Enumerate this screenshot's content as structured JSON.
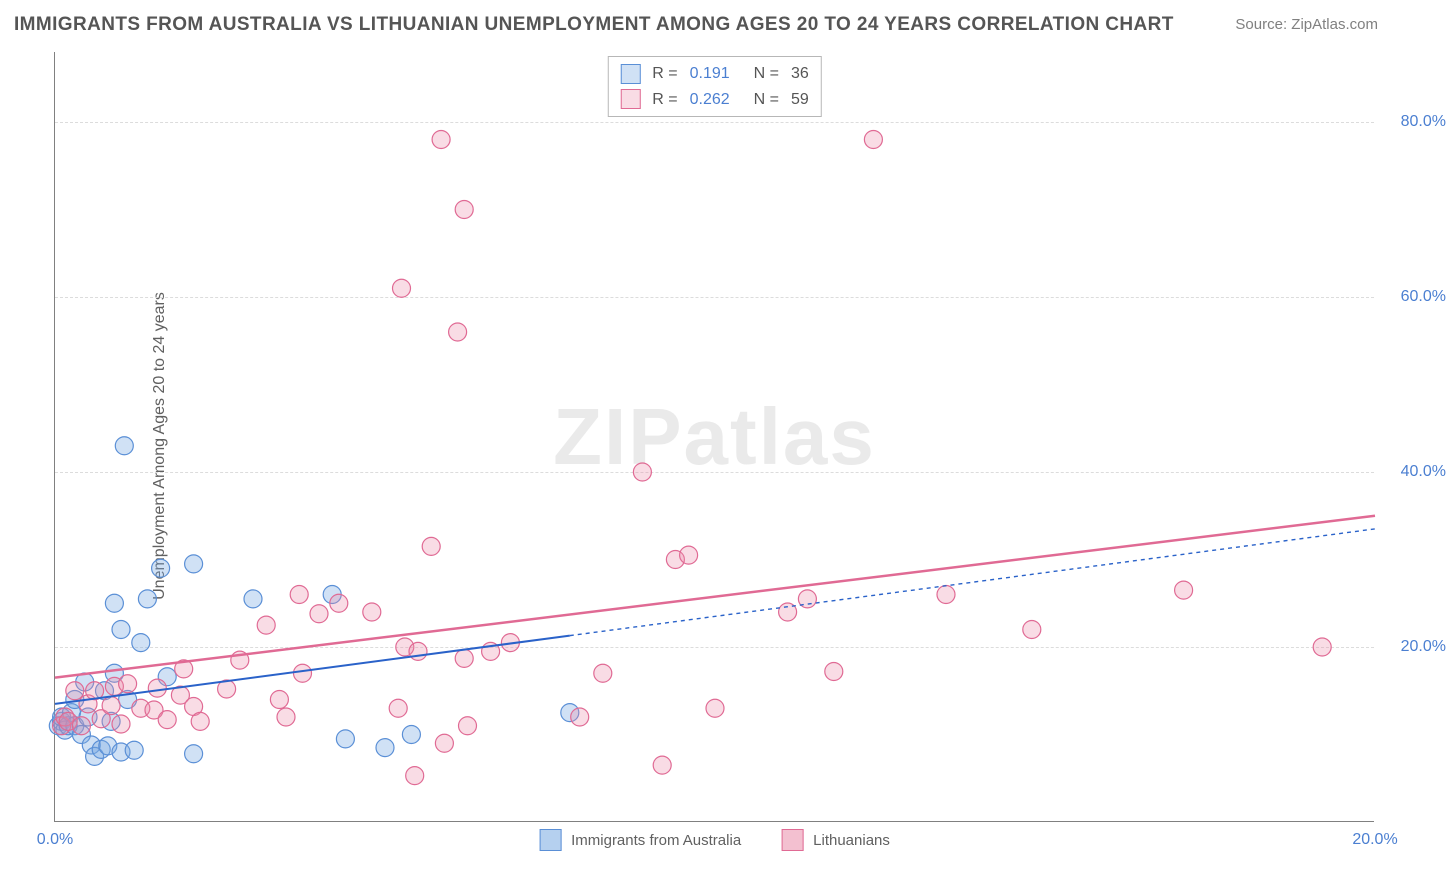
{
  "title": "IMMIGRANTS FROM AUSTRALIA VS LITHUANIAN UNEMPLOYMENT AMONG AGES 20 TO 24 YEARS CORRELATION CHART",
  "source_label": "Source: ",
  "source_value": "ZipAtlas.com",
  "y_axis_label": "Unemployment Among Ages 20 to 24 years",
  "watermark": "ZIPatlas",
  "chart": {
    "type": "scatter",
    "background_color": "#ffffff",
    "grid_color": "#dcdcdc",
    "axis_color": "#808080",
    "tick_color": "#4b7fd1",
    "xlim": [
      0,
      20
    ],
    "ylim": [
      0,
      88
    ],
    "x_ticks": [
      {
        "v": 0,
        "label": "0.0%"
      },
      {
        "v": 20,
        "label": "20.0%"
      }
    ],
    "y_ticks": [
      {
        "v": 20,
        "label": "20.0%"
      },
      {
        "v": 40,
        "label": "40.0%"
      },
      {
        "v": 60,
        "label": "60.0%"
      },
      {
        "v": 80,
        "label": "80.0%"
      }
    ],
    "series": [
      {
        "key": "australia",
        "label": "Immigrants from Australia",
        "marker_color_fill": "rgba(121,169,226,0.35)",
        "marker_color_stroke": "#5a8fd6",
        "marker_radius": 9,
        "line_color": "#2a62c9",
        "line_width": 2,
        "line_dash_ext": "4 4",
        "fit_y_at_x0": 13.5,
        "fit_y_at_xmax": 33.5,
        "solid_x_end": 7.8,
        "R_label": "R  =",
        "R_value": "0.191",
        "N_label": "N  =",
        "N_value": "36",
        "points": [
          [
            0.05,
            11
          ],
          [
            0.1,
            11.5
          ],
          [
            0.1,
            12
          ],
          [
            0.15,
            10.5
          ],
          [
            0.2,
            11
          ],
          [
            0.25,
            12.5
          ],
          [
            0.3,
            11
          ],
          [
            0.3,
            14
          ],
          [
            0.4,
            10
          ],
          [
            0.45,
            16
          ],
          [
            0.5,
            12
          ],
          [
            0.55,
            8.8
          ],
          [
            0.6,
            7.5
          ],
          [
            0.7,
            8.3
          ],
          [
            0.75,
            15
          ],
          [
            0.8,
            8.7
          ],
          [
            0.85,
            11.5
          ],
          [
            0.9,
            25
          ],
          [
            0.9,
            17
          ],
          [
            1.0,
            8.0
          ],
          [
            1.0,
            22
          ],
          [
            1.05,
            43
          ],
          [
            1.1,
            14
          ],
          [
            1.2,
            8.2
          ],
          [
            1.3,
            20.5
          ],
          [
            1.4,
            25.5
          ],
          [
            1.6,
            29
          ],
          [
            1.7,
            16.6
          ],
          [
            2.1,
            29.5
          ],
          [
            2.1,
            7.8
          ],
          [
            3.0,
            25.5
          ],
          [
            4.2,
            26
          ],
          [
            4.4,
            9.5
          ],
          [
            5.0,
            8.5
          ],
          [
            5.4,
            10
          ],
          [
            7.8,
            12.5
          ]
        ]
      },
      {
        "key": "lithuanians",
        "label": "Lithuanians",
        "marker_color_fill": "rgba(234,140,170,0.30)",
        "marker_color_stroke": "#e06a94",
        "marker_radius": 9,
        "line_color": "#e06a94",
        "line_width": 2.5,
        "line_dash_ext": "",
        "fit_y_at_x0": 16.5,
        "fit_y_at_xmax": 35,
        "solid_x_end": 20,
        "R_label": "R  =",
        "R_value": "0.262",
        "N_label": "N  =",
        "N_value": "59",
        "points": [
          [
            0.1,
            11
          ],
          [
            0.15,
            12
          ],
          [
            0.2,
            11.5
          ],
          [
            0.3,
            15
          ],
          [
            0.4,
            11
          ],
          [
            0.5,
            13.5
          ],
          [
            0.6,
            15
          ],
          [
            0.7,
            11.8
          ],
          [
            0.85,
            13.3
          ],
          [
            0.9,
            15.5
          ],
          [
            1.0,
            11.2
          ],
          [
            1.1,
            15.8
          ],
          [
            1.3,
            13
          ],
          [
            1.5,
            12.8
          ],
          [
            1.55,
            15.3
          ],
          [
            1.7,
            11.7
          ],
          [
            1.9,
            14.5
          ],
          [
            1.95,
            17.5
          ],
          [
            2.1,
            13.2
          ],
          [
            2.2,
            11.5
          ],
          [
            2.6,
            15.2
          ],
          [
            2.8,
            18.5
          ],
          [
            3.2,
            22.5
          ],
          [
            3.4,
            14
          ],
          [
            3.5,
            12
          ],
          [
            3.7,
            26
          ],
          [
            3.75,
            17
          ],
          [
            4.0,
            23.8
          ],
          [
            4.3,
            25
          ],
          [
            4.8,
            24
          ],
          [
            5.2,
            13
          ],
          [
            5.25,
            61
          ],
          [
            5.3,
            20
          ],
          [
            5.45,
            5.3
          ],
          [
            5.5,
            19.5
          ],
          [
            5.7,
            31.5
          ],
          [
            5.85,
            78
          ],
          [
            5.9,
            9
          ],
          [
            6.1,
            56
          ],
          [
            6.2,
            70
          ],
          [
            6.2,
            18.7
          ],
          [
            6.25,
            11
          ],
          [
            6.6,
            19.5
          ],
          [
            6.9,
            20.5
          ],
          [
            7.95,
            12
          ],
          [
            8.3,
            17
          ],
          [
            8.9,
            40
          ],
          [
            9.2,
            6.5
          ],
          [
            9.4,
            30
          ],
          [
            9.6,
            30.5
          ],
          [
            10.0,
            13
          ],
          [
            11.1,
            24
          ],
          [
            11.4,
            25.5
          ],
          [
            11.8,
            17.2
          ],
          [
            12.4,
            78
          ],
          [
            13.5,
            26
          ],
          [
            14.8,
            22
          ],
          [
            17.1,
            26.5
          ],
          [
            19.2,
            20
          ]
        ]
      }
    ]
  },
  "bottom_legend": [
    {
      "key": "australia",
      "label": "Immigrants from Australia",
      "fill": "rgba(121,169,226,0.55)",
      "stroke": "#5a8fd6"
    },
    {
      "key": "lithuanians",
      "label": "Lithuanians",
      "fill": "rgba(234,140,170,0.55)",
      "stroke": "#e06a94"
    }
  ]
}
